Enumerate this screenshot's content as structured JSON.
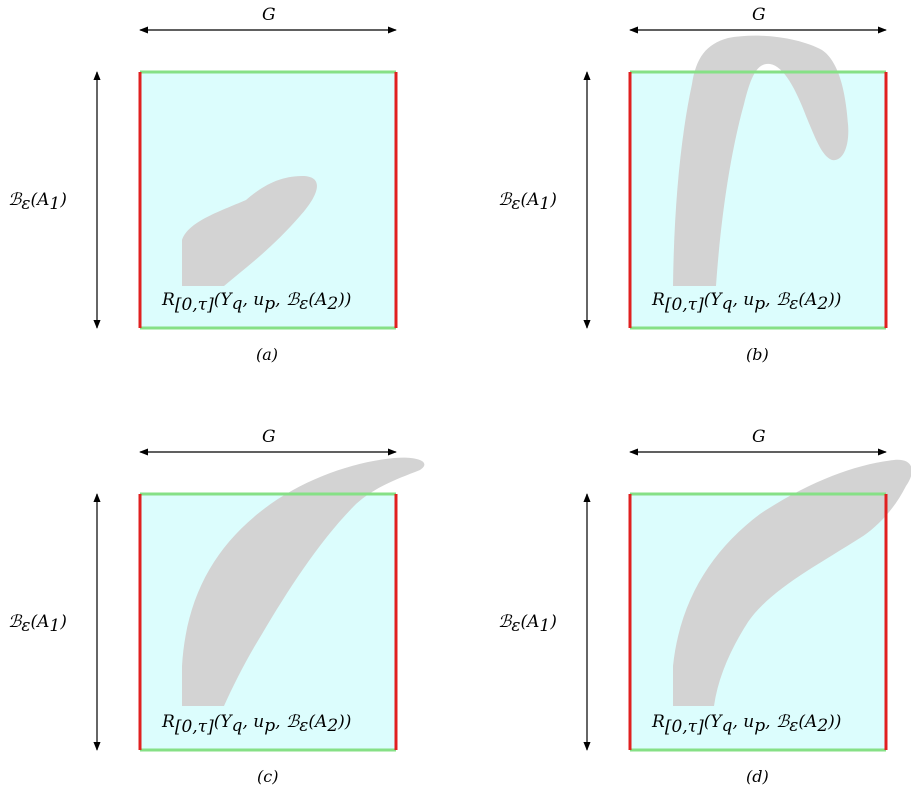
{
  "colors": {
    "box_fill": "#dcfdfd",
    "side_edges": "#e02020",
    "top_bottom_edges": "#86e086",
    "region_fill": "#d3d3d3",
    "arrows": "#000000"
  },
  "labels": {
    "horizontal": "G",
    "vertical_main": "ℬ",
    "vertical_sub": "ε",
    "vertical_arg": "(A",
    "vertical_arg_sub": "1",
    "vertical_close": ")",
    "reach_main": "R",
    "reach_sub": "[0,τ]",
    "reach_args": "(Y",
    "reach_q": "q",
    "reach_u": ", u",
    "reach_p": "p",
    "reach_b": ", ℬ",
    "reach_eps": "ε",
    "reach_a": "(A",
    "reach_a_sub": "2",
    "reach_close": "))"
  },
  "panels": [
    {
      "id": "a",
      "caption": "(a)"
    },
    {
      "id": "b",
      "caption": "(b)"
    },
    {
      "id": "c",
      "caption": "(c)"
    },
    {
      "id": "d",
      "caption": "(d)"
    }
  ]
}
